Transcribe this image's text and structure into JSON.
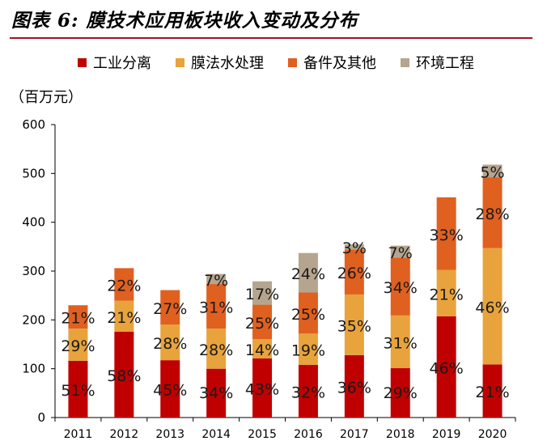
{
  "title": "图表 6: 膜技术应用板块收入变动及分布",
  "unit_label": "（百万元）",
  "chart_data": {
    "type": "bar",
    "stacked": true,
    "categories": [
      "2011",
      "2012",
      "2013",
      "2014",
      "2015",
      "2016",
      "2017",
      "2018",
      "2019",
      "2020"
    ],
    "ylim": [
      0,
      600
    ],
    "yticks": [
      0,
      100,
      200,
      300,
      400,
      500,
      600
    ],
    "totals": [
      230,
      306,
      261,
      294,
      279,
      337,
      355,
      352,
      451,
      518
    ],
    "series": [
      {
        "name": "工业分离",
        "color": "#c00000",
        "shares": [
          51,
          58,
          45,
          34,
          43,
          32,
          36,
          29,
          46,
          21
        ],
        "labels": [
          "51%",
          "58%",
          "45%",
          "34%",
          "43%",
          "32%",
          "36%",
          "29%",
          "46%",
          "21%"
        ]
      },
      {
        "name": "膜法水处理",
        "color": "#e8a33c",
        "shares": [
          29,
          21,
          28,
          28,
          14,
          19,
          35,
          31,
          21,
          46
        ],
        "labels": [
          "29%",
          "21%",
          "28%",
          "28%",
          "14%",
          "19%",
          "35%",
          "31%",
          "21%",
          "46%"
        ]
      },
      {
        "name": "备件及其他",
        "color": "#e06020",
        "shares": [
          21,
          22,
          27,
          31,
          25,
          25,
          26,
          34,
          33,
          28
        ],
        "labels": [
          "21%",
          "22%",
          "27%",
          "31%",
          "25%",
          "25%",
          "26%",
          "34%",
          "33%",
          "28%"
        ]
      },
      {
        "name": "环境工程",
        "color": "#b5a58e",
        "shares": [
          0,
          0,
          0,
          7,
          17,
          24,
          3,
          7,
          0,
          5
        ],
        "labels": [
          "",
          "",
          "",
          "7%",
          "17%",
          "24%",
          "3%",
          "7%",
          "",
          "5%"
        ]
      }
    ]
  }
}
